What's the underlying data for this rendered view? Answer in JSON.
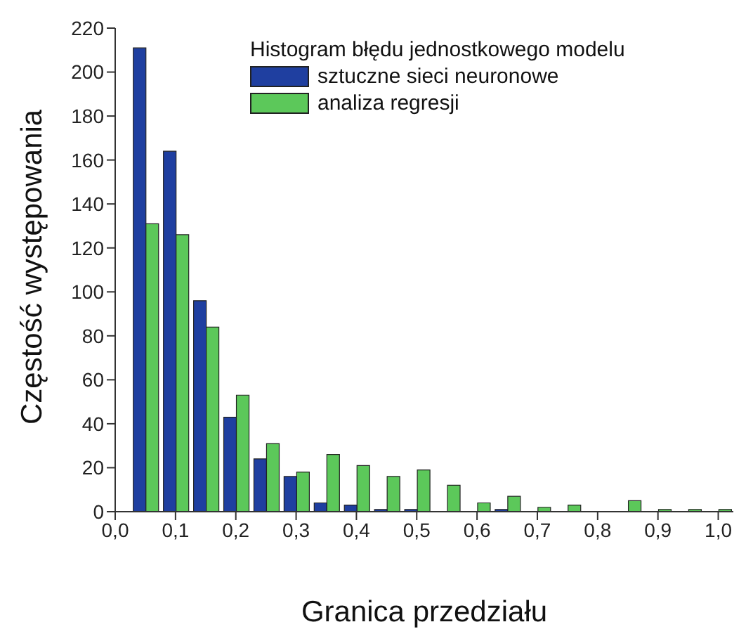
{
  "chart_data": {
    "type": "bar",
    "xlabel": "Granica przedziału",
    "ylabel": "Częstość występowania",
    "legend_title": "Histogram błędu jednostkowego modelu",
    "x": [
      0.05,
      0.1,
      0.15,
      0.2,
      0.25,
      0.3,
      0.35,
      0.4,
      0.45,
      0.5,
      0.55,
      0.6,
      0.65,
      0.7,
      0.75,
      0.8,
      0.85,
      0.9,
      0.95,
      1.0
    ],
    "series": [
      {
        "name": "sztuczne sieci neuronowe",
        "color": "#1f3fa0",
        "values": [
          211,
          164,
          96,
          43,
          24,
          16,
          4,
          3,
          1,
          1,
          0,
          0,
          1,
          0,
          0,
          0,
          0,
          0,
          0,
          0
        ]
      },
      {
        "name": "analiza regresji",
        "color": "#5cc85a",
        "values": [
          131,
          126,
          84,
          53,
          31,
          18,
          26,
          21,
          16,
          19,
          12,
          4,
          7,
          2,
          3,
          0,
          5,
          1,
          1,
          1
        ]
      }
    ],
    "xlim": [
      0,
      1.025
    ],
    "xticks": [
      {
        "value": 0,
        "label": "0,0"
      },
      {
        "value": 0.1,
        "label": "0,1"
      },
      {
        "value": 0.2,
        "label": "0,2"
      },
      {
        "value": 0.3,
        "label": "0,3"
      },
      {
        "value": 0.4,
        "label": "0,4"
      },
      {
        "value": 0.5,
        "label": "0,5"
      },
      {
        "value": 0.6,
        "label": "0,6"
      },
      {
        "value": 0.7,
        "label": "0,7"
      },
      {
        "value": 0.8,
        "label": "0,8"
      },
      {
        "value": 0.9,
        "label": "0,9"
      },
      {
        "value": 1.0,
        "label": "1,0"
      }
    ],
    "ylim": [
      0,
      220
    ],
    "yticks": [
      0,
      20,
      40,
      60,
      80,
      100,
      120,
      140,
      160,
      180,
      200,
      220
    ],
    "grid": false,
    "legend": "top right"
  }
}
